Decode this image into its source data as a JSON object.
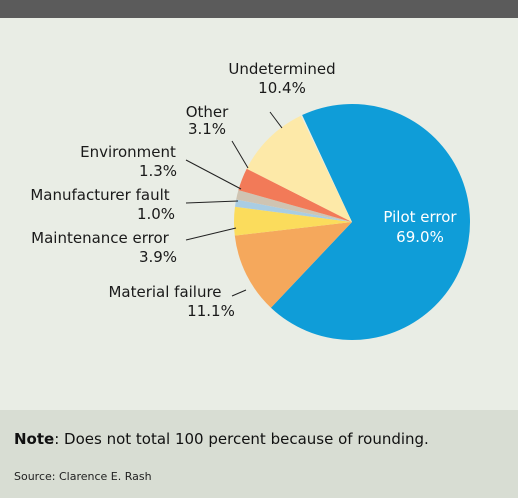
{
  "chart_data": {
    "type": "pie",
    "categories": [
      "Pilot error",
      "Material failure",
      "Maintenance error",
      "Manufacturer fault",
      "Environment",
      "Other",
      "Undetermined"
    ],
    "values": [
      69.0,
      11.1,
      3.9,
      1.0,
      1.3,
      3.1,
      10.4
    ],
    "value_labels": [
      "69.0%",
      "11.1%",
      "3.9%",
      "1.0%",
      "1.3%",
      "3.1%",
      "10.4%"
    ],
    "colors": [
      "#0f9dd8",
      "#f5a85c",
      "#fbdc5c",
      "#a9cde3",
      "#cfc4b2",
      "#f27a58",
      "#fde9a8"
    ]
  },
  "note": {
    "label": "Note",
    "text": ": Does not total 100 percent because of rounding."
  },
  "source": "Source: Clarence E. Rash"
}
